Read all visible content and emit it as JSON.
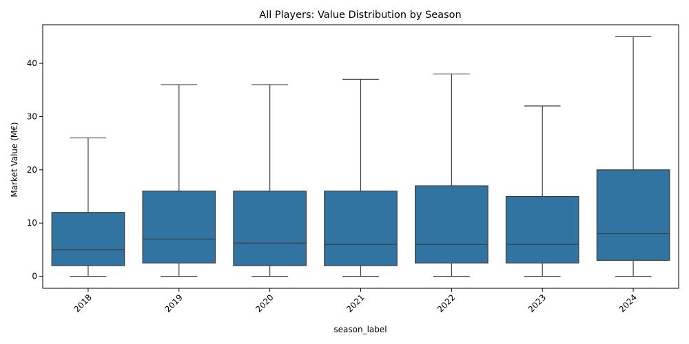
{
  "chart_data": {
    "type": "box",
    "title": "All Players: Value Distribution by Season",
    "xlabel": "season_label",
    "ylabel": "Market Value (M€)",
    "ylim": [
      -2.25,
      47.25
    ],
    "yticks": [
      0,
      10,
      20,
      30,
      40
    ],
    "x_tick_rotation": 45,
    "box_color": "#3274a1",
    "line_color": "#3d3d3d",
    "grid": false,
    "categories": [
      "2018",
      "2019",
      "2020",
      "2021",
      "2022",
      "2023",
      "2024"
    ],
    "boxes": [
      {
        "label": "2018",
        "whisker_low": 0,
        "q1": 2.0,
        "median": 5.0,
        "q3": 12.0,
        "whisker_high": 26
      },
      {
        "label": "2019",
        "whisker_low": 0,
        "q1": 2.5,
        "median": 7.0,
        "q3": 16.0,
        "whisker_high": 36
      },
      {
        "label": "2020",
        "whisker_low": 0,
        "q1": 2.0,
        "median": 6.25,
        "q3": 16.0,
        "whisker_high": 36
      },
      {
        "label": "2021",
        "whisker_low": 0,
        "q1": 2.0,
        "median": 6.0,
        "q3": 16.0,
        "whisker_high": 37
      },
      {
        "label": "2022",
        "whisker_low": 0,
        "q1": 2.5,
        "median": 6.0,
        "q3": 17.0,
        "whisker_high": 38
      },
      {
        "label": "2023",
        "whisker_low": 0,
        "q1": 2.5,
        "median": 6.0,
        "q3": 15.0,
        "whisker_high": 32
      },
      {
        "label": "2024",
        "whisker_low": 0,
        "q1": 3.0,
        "median": 8.0,
        "q3": 20.0,
        "whisker_high": 45
      }
    ]
  }
}
